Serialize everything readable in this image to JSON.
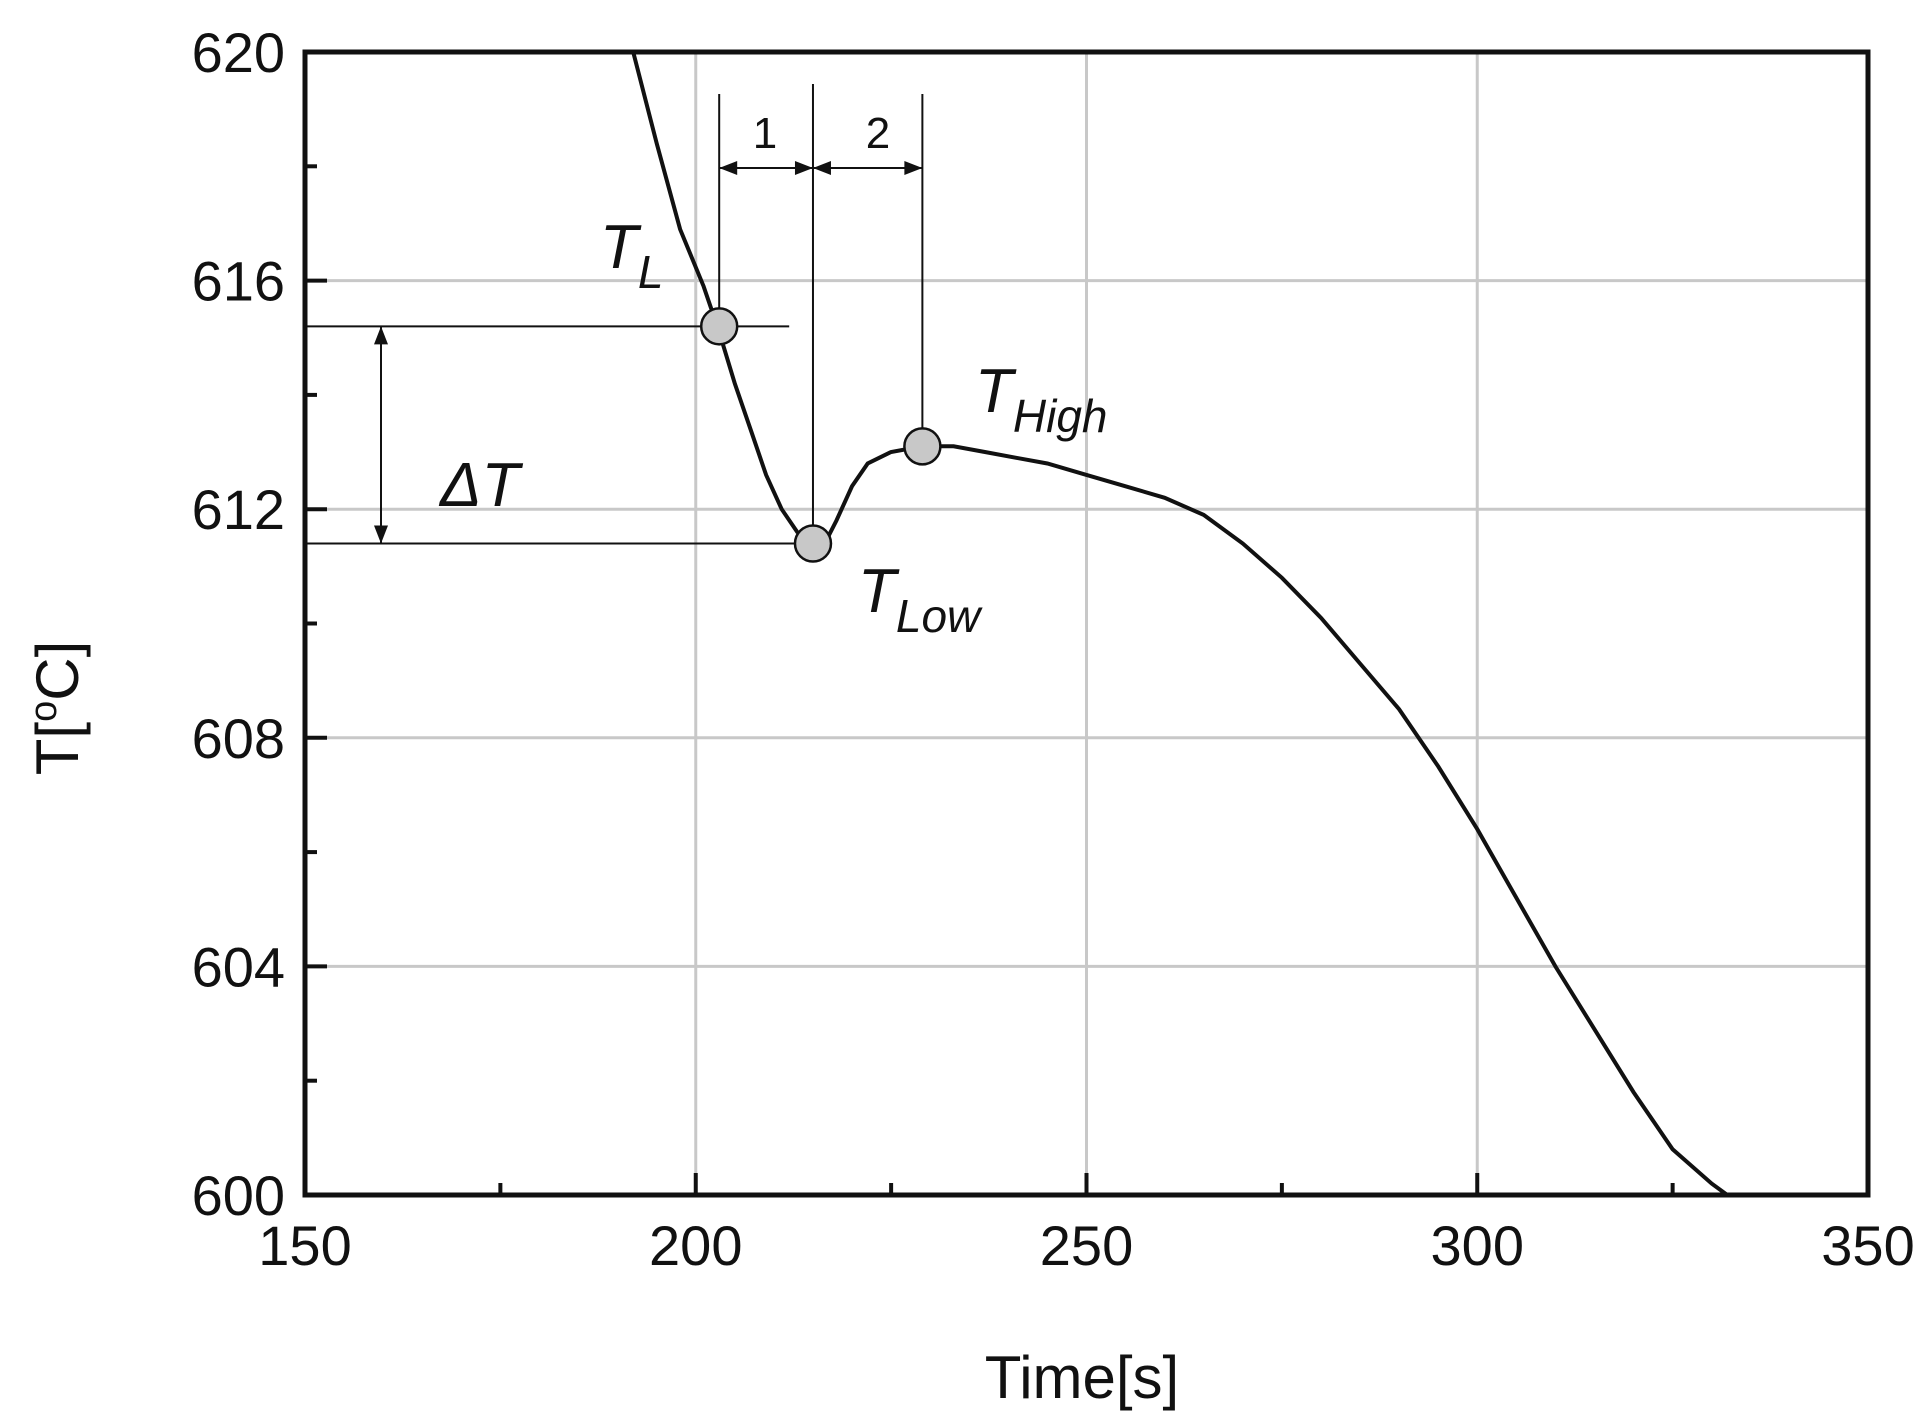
{
  "chart_data": {
    "type": "line",
    "xlabel": "Time[s]",
    "ylabel_main": "T[",
    "ylabel_sup": "o",
    "ylabel_tail": "C]",
    "xlim": [
      150,
      350
    ],
    "ylim": [
      600,
      620
    ],
    "xticks": [
      150,
      200,
      250,
      300,
      350
    ],
    "yticks": [
      600,
      604,
      608,
      612,
      616,
      620
    ],
    "xtick_labels": [
      "150",
      "200",
      "250",
      "300",
      "350"
    ],
    "ytick_labels": [
      "600",
      "604",
      "608",
      "612",
      "616",
      "620"
    ],
    "x_minor_step": 25,
    "y_minor_step": 2,
    "grid": true,
    "grid_color": "#c8c8c8",
    "line_color": "#111111",
    "marker_color": "#c8c8c8",
    "series": [
      {
        "x": [
          192,
          195,
          198,
          201,
          203,
          205,
          207,
          209,
          211,
          213,
          215,
          216.5,
          218,
          220,
          222,
          225,
          229,
          233,
          237,
          241,
          245,
          250,
          255,
          260,
          265,
          270,
          275,
          280,
          285,
          290,
          295,
          300,
          305,
          310,
          315,
          320,
          325,
          330,
          332
        ],
        "y": [
          620,
          618.4,
          616.9,
          615.9,
          615.1,
          614.2,
          613.4,
          612.6,
          612.0,
          611.6,
          611.4,
          611.4,
          611.8,
          612.4,
          612.8,
          613.0,
          613.1,
          613.1,
          613.0,
          612.9,
          612.8,
          612.6,
          612.4,
          612.2,
          611.9,
          611.4,
          610.8,
          610.1,
          609.3,
          608.5,
          607.5,
          606.4,
          605.2,
          604.0,
          602.9,
          601.8,
          600.8,
          600.2,
          600.0
        ]
      }
    ],
    "points": [
      {
        "name": "T_L",
        "x": 203,
        "y": 615.2
      },
      {
        "name": "T_Low",
        "x": 215,
        "y": 611.4
      },
      {
        "name": "T_High",
        "x": 229,
        "y": 613.1
      }
    ],
    "annotations": {
      "tl_main": "T",
      "tl_sub": "L",
      "tlow_main": "T",
      "tlow_sub": "Low",
      "thigh_main": "T",
      "thigh_sub": "High",
      "delta": "ΔT",
      "interval_1": "1",
      "interval_2": "2"
    }
  }
}
